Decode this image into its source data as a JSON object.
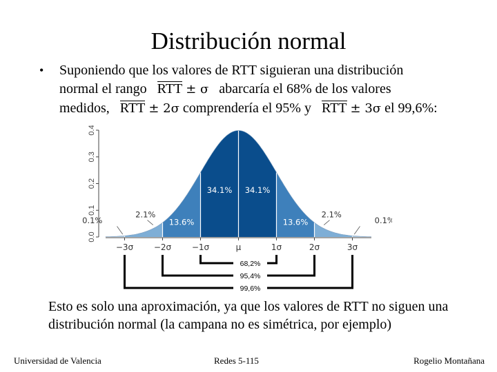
{
  "slide": {
    "title": "Distribución normal",
    "bullet": {
      "symbol": "•",
      "line1": "Suponiendo que los valores de RTT siguieran una distribución",
      "line2_pre": "normal el rango",
      "line2_post": "abarcaría el 68% de los valores",
      "line3_pre": "medidos,",
      "line3_mid": "comprendería el 95% y",
      "line3_post": "el 99,6%:",
      "rtt": "RTT",
      "pm_sigma": "± σ",
      "pm_2sigma": "± 2σ",
      "pm_3sigma": "± 3σ"
    },
    "note": "Esto es solo una aproximación, ya que los valores de RTT no siguen una distribución normal (la campana no es simétrica, por ejemplo)",
    "footer": {
      "left": "Universidad de Valencia",
      "center": "Redes 5-115",
      "right": "Rogelio Montañana"
    }
  },
  "chart_data": {
    "type": "area",
    "ylim": [
      0,
      0.4
    ],
    "xlim": [
      -3.5,
      3.5
    ],
    "y_ticks": [
      "0.0",
      "0.1",
      "0.2",
      "0.3",
      "0.4"
    ],
    "x_ticks": [
      "−3σ",
      "−2σ",
      "−1σ",
      "μ",
      "1σ",
      "2σ",
      "3σ"
    ],
    "region_labels": [
      "0.1%",
      "2.1%",
      "13.6%",
      "34.1%",
      "34.1%",
      "13.6%",
      "2.1%",
      "0.1%"
    ],
    "brackets": [
      "68,2%",
      "95,4%",
      "99,6%"
    ],
    "colors": {
      "inner": "#0a4d8c",
      "middle": "#3e80bb",
      "outer": "#7eaed6",
      "tail": "#a9c7e0"
    }
  }
}
